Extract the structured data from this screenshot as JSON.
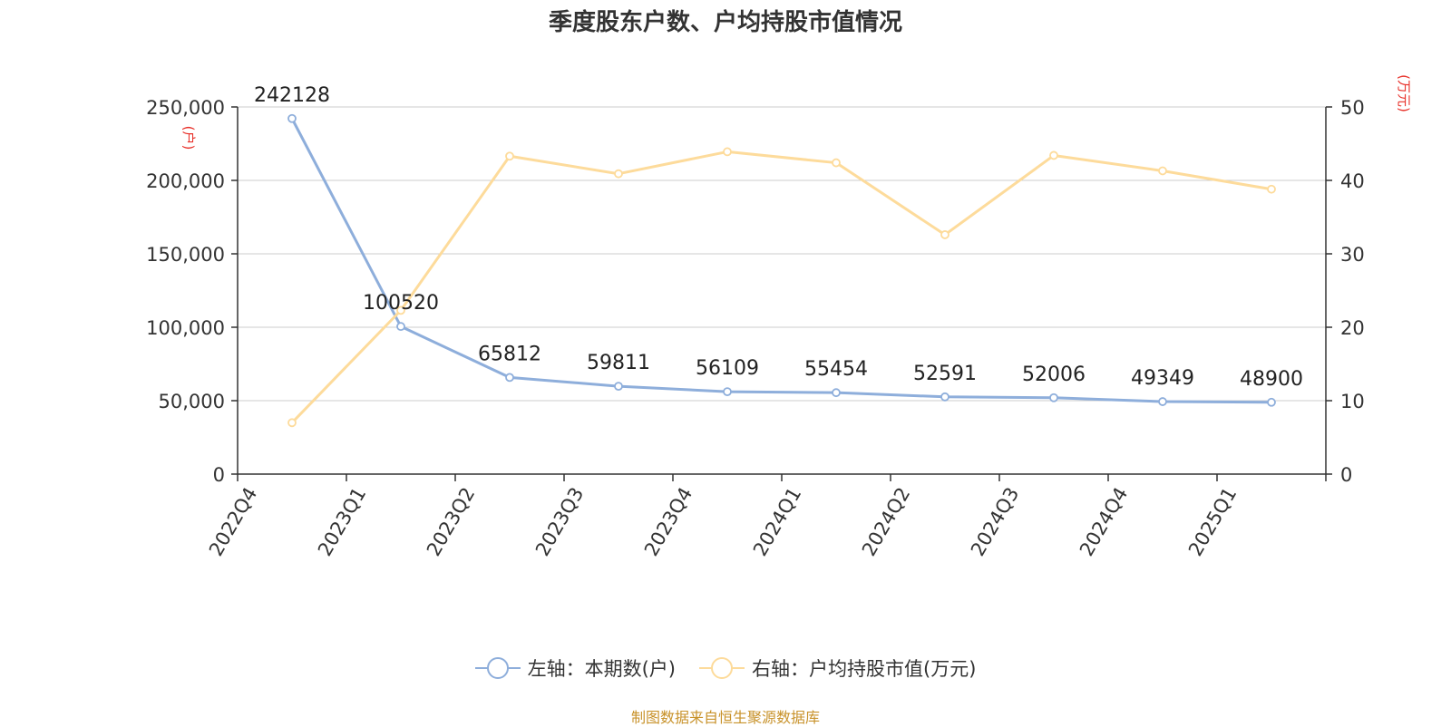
{
  "chart_data": {
    "type": "line",
    "title": "季度股东户数、户均持股市值情况",
    "categories": [
      "2022Q4",
      "2023Q1",
      "2023Q2",
      "2023Q3",
      "2023Q4",
      "2024Q1",
      "2024Q2",
      "2024Q3",
      "2024Q4",
      "2025Q1"
    ],
    "left_axis": {
      "unit_label": "(户)",
      "min": 0,
      "max": 250000,
      "ticks": [
        "0",
        "50,000",
        "100,000",
        "150,000",
        "200,000",
        "250,000"
      ],
      "tick_values": [
        0,
        50000,
        100000,
        150000,
        200000,
        250000
      ]
    },
    "right_axis": {
      "unit_label": "(万元)",
      "min": 0,
      "max": 50,
      "ticks": [
        "0",
        "10",
        "20",
        "30",
        "40",
        "50"
      ],
      "tick_values": [
        0,
        10,
        20,
        30,
        40,
        50
      ]
    },
    "series": [
      {
        "name": "左轴：本期数(户)",
        "axis": "left",
        "color": "#8eaedb",
        "values": [
          242128,
          100520,
          65812,
          59811,
          56109,
          55454,
          52591,
          52006,
          49349,
          48900
        ],
        "labels": [
          "242128",
          "100520",
          "65812",
          "59811",
          "56109",
          "55454",
          "52591",
          "52006",
          "49349",
          "48900"
        ]
      },
      {
        "name": "右轴：户均持股市值(万元)",
        "axis": "right",
        "color": "#fddb9b",
        "values": [
          7.0,
          22.3,
          43.3,
          40.9,
          43.9,
          42.4,
          32.6,
          43.4,
          41.3,
          38.8
        ]
      }
    ],
    "grid": true,
    "legend_position": "bottom-center"
  },
  "source_note": "制图数据来自恒生聚源数据库",
  "colors": {
    "axis_unit_label": "#e8312a",
    "grid": "#cccccc",
    "axis": "#333333",
    "source_note": "#c8922a"
  }
}
